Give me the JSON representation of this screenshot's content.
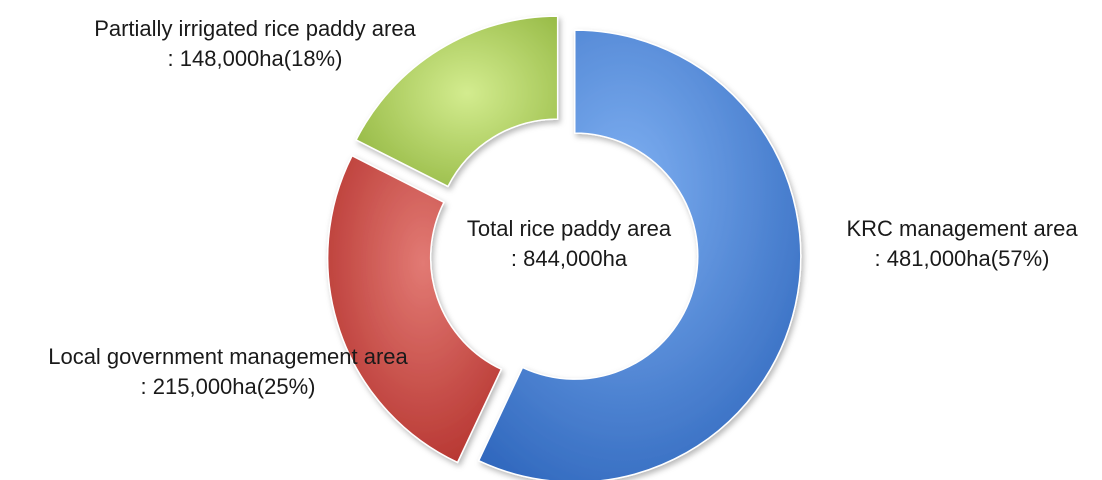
{
  "chart_data": {
    "type": "pie",
    "style": "donut-exploded",
    "center_label": {
      "title": "Total rice paddy area",
      "value": ": 844,000ha"
    },
    "slices": [
      {
        "name": "KRC management area",
        "value": 481000,
        "value_label": ": 481,000ha(57%)",
        "percent": 57,
        "color": "#4a7fd0"
      },
      {
        "name": "Local government management area",
        "value": 215000,
        "value_label": ": 215,000ha(25%)",
        "percent": 25,
        "color": "#c9403b"
      },
      {
        "name": "Partially irrigated rice paddy area",
        "value": 148000,
        "value_label": ": 148,000ha(18%)",
        "percent": 18,
        "color": "#9cc24a"
      }
    ]
  }
}
